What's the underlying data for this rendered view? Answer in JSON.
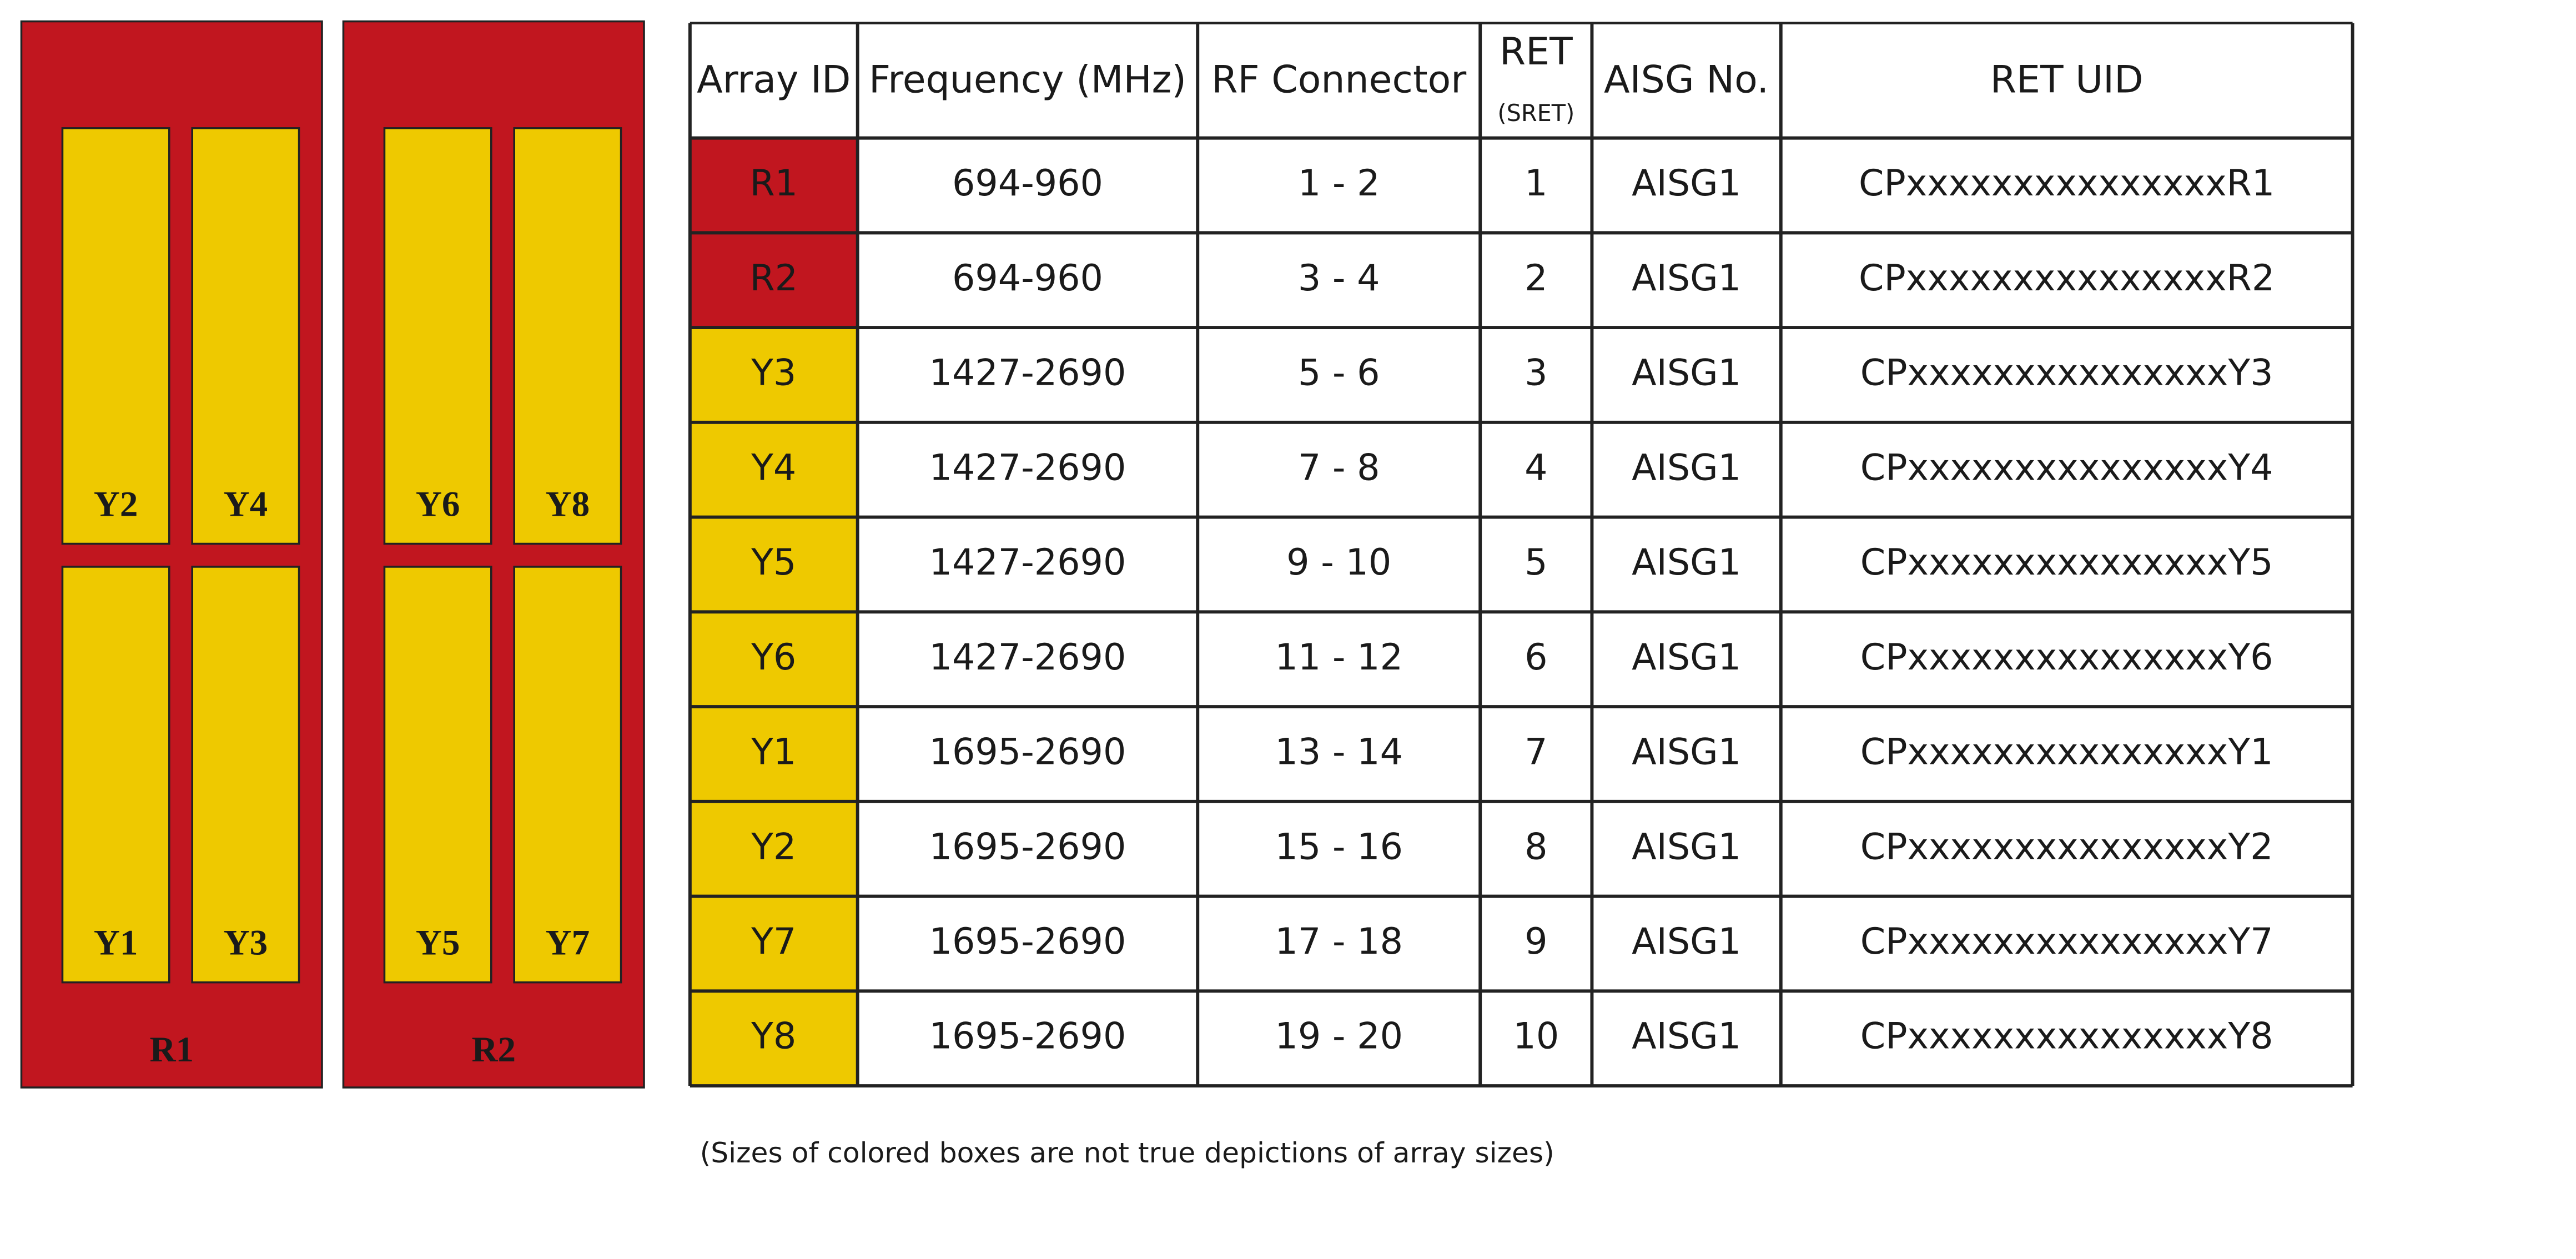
{
  "diagram": {
    "panels": [
      {
        "label": "R1",
        "arrays": [
          "Y2",
          "Y4",
          "Y1",
          "Y3"
        ]
      },
      {
        "label": "R2",
        "arrays": [
          "Y6",
          "Y8",
          "Y5",
          "Y7"
        ]
      }
    ],
    "panel_color": "#c1161f",
    "array_color": "#eec900"
  },
  "table": {
    "header": [
      "Array ID",
      "Frequency (MHz)",
      "RF Connector",
      "RET",
      "AISG No.",
      "RET UID"
    ],
    "header_sub": "(SRET)",
    "rows": [
      [
        "R1",
        "694-960",
        "1 - 2",
        "1",
        "AISG1",
        "CPxxxxxxxxxxxxxxxR1"
      ],
      [
        "R2",
        "694-960",
        "3 - 4",
        "2",
        "AISG1",
        "CPxxxxxxxxxxxxxxxR2"
      ],
      [
        "Y3",
        "1427-2690",
        "5 - 6",
        "3",
        "AISG1",
        "CPxxxxxxxxxxxxxxxY3"
      ],
      [
        "Y4",
        "1427-2690",
        "7 - 8",
        "4",
        "AISG1",
        "CPxxxxxxxxxxxxxxxY4"
      ],
      [
        "Y5",
        "1427-2690",
        "9 - 10",
        "5",
        "AISG1",
        "CPxxxxxxxxxxxxxxxY5"
      ],
      [
        "Y6",
        "1427-2690",
        "11 - 12",
        "6",
        "AISG1",
        "CPxxxxxxxxxxxxxxxY6"
      ],
      [
        "Y1",
        "1695-2690",
        "13 - 14",
        "7",
        "AISG1",
        "CPxxxxxxxxxxxxxxxY1"
      ],
      [
        "Y2",
        "1695-2690",
        "15 - 16",
        "8",
        "AISG1",
        "CPxxxxxxxxxxxxxxxY2"
      ],
      [
        "Y7",
        "1695-2690",
        "17 - 18",
        "9",
        "AISG1",
        "CPxxxxxxxxxxxxxxxY7"
      ],
      [
        "Y8",
        "1695-2690",
        "19 - 20",
        "10",
        "AISG1",
        "CPxxxxxxxxxxxxxxxY8"
      ]
    ],
    "id_colors": [
      "#c1161f",
      "#c1161f",
      "#eec900",
      "#eec900",
      "#eec900",
      "#eec900",
      "#eec900",
      "#eec900",
      "#eec900",
      "#eec900"
    ]
  },
  "footnote": "(Sizes of colored boxes are not true depictions of array sizes)"
}
